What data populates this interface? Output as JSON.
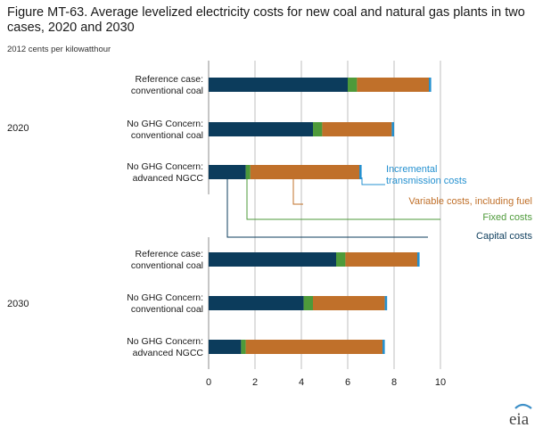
{
  "title": "Figure MT-63. Average levelized electricity costs for new coal and natural gas plants in two cases, 2020 and 2030",
  "subtitle": "2012 cents per kilowatthour",
  "logo_text": "eia",
  "chart_data": {
    "type": "bar",
    "orientation": "horizontal",
    "stacked": true,
    "groups": [
      {
        "label": "2020",
        "categories": [
          "Reference case:\nconventional coal",
          "No GHG Concern:\nconventional coal",
          "No GHG Concern:\nadvanced NGCC"
        ]
      },
      {
        "label": "2030",
        "categories": [
          "Reference case:\nconventional coal",
          "No GHG Concern:\nconventional coal",
          "No GHG Concern:\nadvanced NGCC"
        ]
      }
    ],
    "series": [
      {
        "name": "Capital costs",
        "color": "#0c3c5c",
        "values": [
          6.0,
          4.5,
          1.6,
          5.5,
          4.1,
          1.4
        ]
      },
      {
        "name": "Fixed costs",
        "color": "#4e9a3a",
        "values": [
          0.4,
          0.4,
          0.2,
          0.4,
          0.4,
          0.2
        ]
      },
      {
        "name": "Variable costs, including fuel",
        "color": "#c0702a",
        "values": [
          3.1,
          3.0,
          4.7,
          3.1,
          3.1,
          5.9
        ]
      },
      {
        "name": "Incremental\ntransmission costs",
        "color": "#2591d0",
        "values": [
          0.1,
          0.1,
          0.1,
          0.1,
          0.1,
          0.1
        ]
      }
    ],
    "xlim": [
      0,
      10
    ],
    "xticks": [
      0,
      2,
      4,
      6,
      8,
      10
    ],
    "xlabel": "",
    "ylabel": "",
    "grid": "vertical",
    "legend": "annotated leader lines"
  }
}
